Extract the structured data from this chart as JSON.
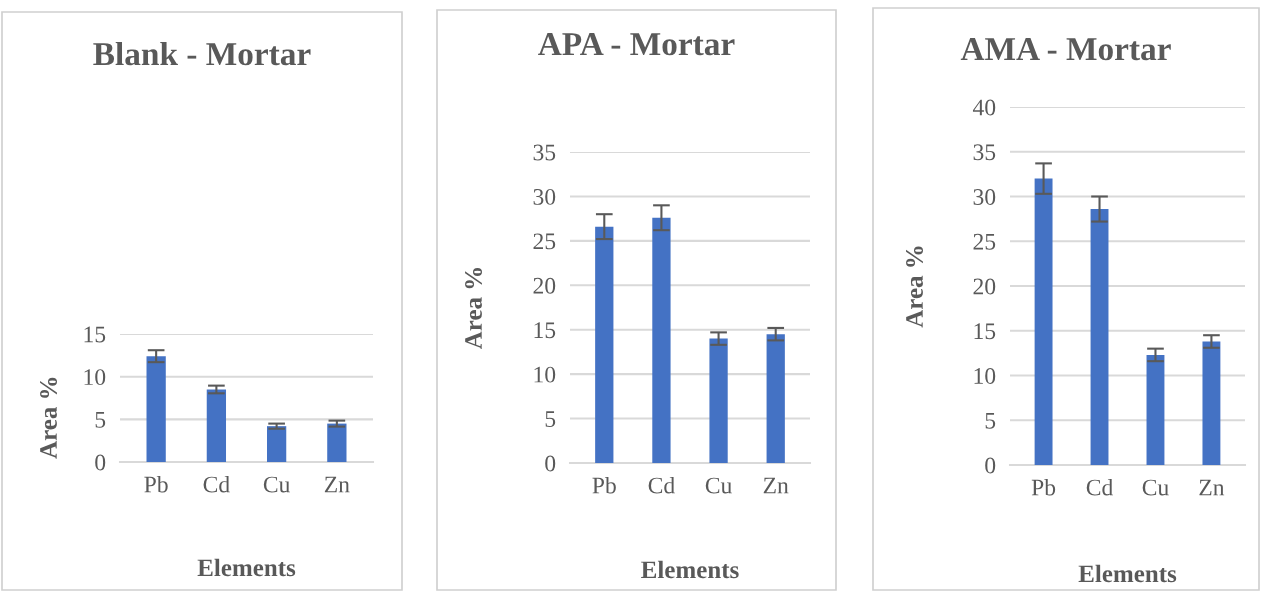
{
  "chart_data": [
    {
      "type": "bar",
      "title": "Blank - Mortar",
      "xlabel": "Elements",
      "ylabel": "Area %",
      "categories": [
        "Pb",
        "Cd",
        "Cu",
        "Zn"
      ],
      "values": [
        12.4,
        8.5,
        4.2,
        4.5
      ],
      "errors": [
        0.7,
        0.45,
        0.3,
        0.35
      ],
      "color": "#4472c4",
      "ylim": [
        0,
        15
      ],
      "yticks": [
        0,
        5,
        10,
        15
      ],
      "grid": "y"
    },
    {
      "type": "bar",
      "title": "APA - Mortar",
      "xlabel": "Elements",
      "ylabel": "Area %",
      "categories": [
        "Pb",
        "Cd",
        "Cu",
        "Zn"
      ],
      "values": [
        26.6,
        27.6,
        14.0,
        14.5
      ],
      "errors": [
        1.4,
        1.4,
        0.7,
        0.7
      ],
      "color": "#4472c4",
      "ylim": [
        0,
        35
      ],
      "yticks": [
        0,
        5,
        10,
        15,
        20,
        25,
        30,
        35
      ],
      "grid": "y"
    },
    {
      "type": "bar",
      "title": "AMA - Mortar",
      "xlabel": "Elements",
      "ylabel": "Area %",
      "categories": [
        "Pb",
        "Cd",
        "Cu",
        "Zn"
      ],
      "values": [
        32.0,
        28.6,
        12.3,
        13.8
      ],
      "errors": [
        1.7,
        1.4,
        0.7,
        0.7
      ],
      "color": "#4472c4",
      "ylim": [
        0,
        40
      ],
      "yticks": [
        0,
        5,
        10,
        15,
        20,
        25,
        30,
        35,
        40
      ],
      "grid": "y"
    }
  ]
}
